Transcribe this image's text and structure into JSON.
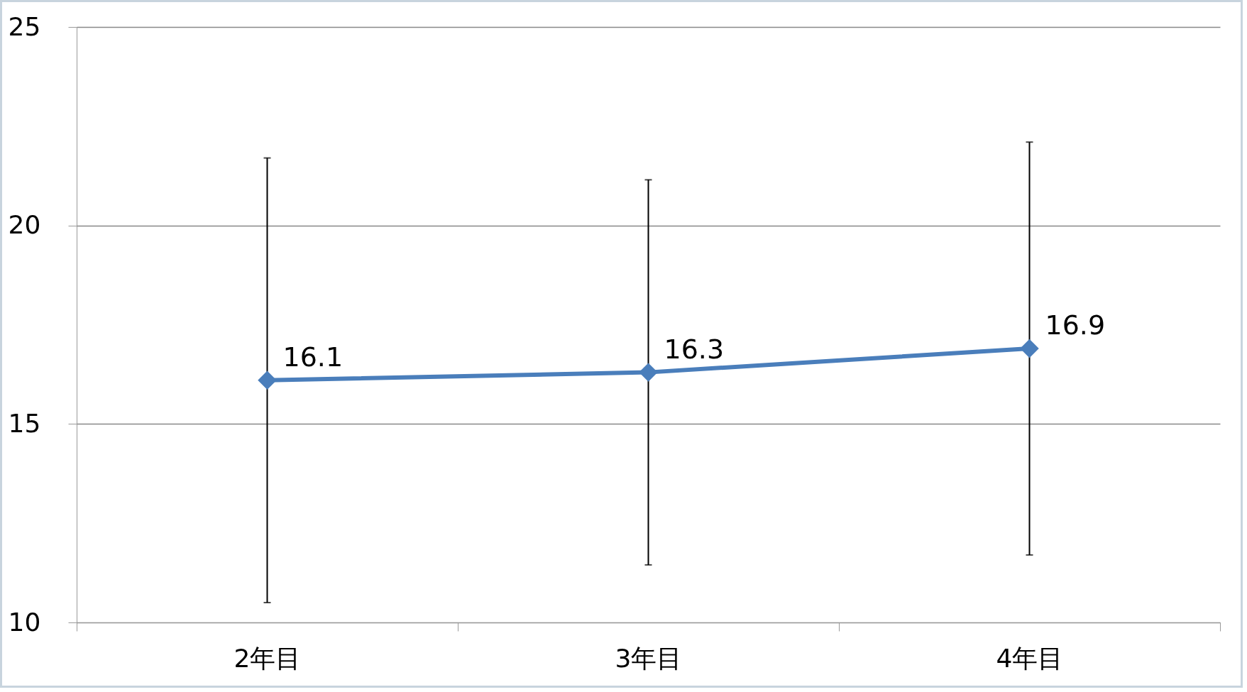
{
  "chart_data": {
    "type": "line",
    "categories": [
      "2年目",
      "3年目",
      "4年目"
    ],
    "series": [
      {
        "color": "#4a7ebb",
        "values": [
          16.1,
          16.3,
          16.9
        ],
        "errors": [
          5.6,
          4.85,
          5.2
        ]
      }
    ],
    "ylim": [
      10,
      25
    ],
    "yticks": [
      10,
      15,
      20,
      25
    ],
    "grid": "y",
    "data_labels": true,
    "marker": "diamond"
  }
}
